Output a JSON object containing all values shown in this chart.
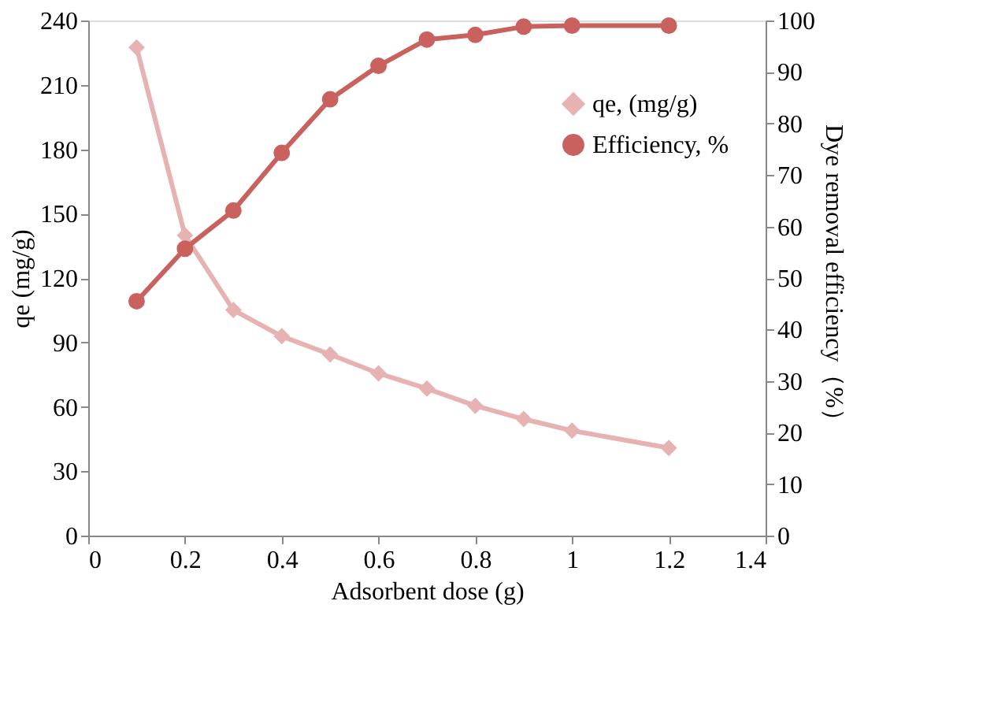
{
  "chart_data": {
    "type": "line",
    "xlabel": "Adsorbent dose (g)",
    "ylabel": "qe (mg/g)",
    "y2label": "Dye removal efficiency（%）",
    "x": [
      0.1,
      0.2,
      0.3,
      0.4,
      0.5,
      0.6,
      0.7,
      0.8,
      0.9,
      1.0,
      1.2
    ],
    "series": [
      {
        "name": "qe, (mg/g)",
        "color": "#e6b3b2",
        "marker": "diamond",
        "values": [
          227.4,
          139.9,
          105.1,
          92.9,
          84.4,
          75.6,
          68.5,
          60.5,
          54.3,
          48.9,
          40.8
        ]
      },
      {
        "name": "Efficiency, %",
        "color": "#c9625f",
        "marker": "circle",
        "axis": "y2",
        "values": [
          45.5,
          55.7,
          63.1,
          74.3,
          84.7,
          91.2,
          96.3,
          97.2,
          98.8,
          99.0,
          99.0
        ]
      }
    ],
    "xlim": [
      0,
      1.4
    ],
    "xticks": [
      0,
      0.2,
      0.4,
      0.6,
      0.8,
      1,
      1.2,
      1.4
    ],
    "ylim": [
      0,
      240
    ],
    "yticks": [
      0,
      30,
      60,
      90,
      120,
      150,
      180,
      210,
      240
    ],
    "y2lim": [
      0,
      100
    ],
    "y2ticks": [
      0,
      10,
      20,
      30,
      40,
      50,
      60,
      70,
      80,
      90,
      100
    ],
    "grid": false,
    "legend": "top right",
    "line_style": "solid"
  }
}
